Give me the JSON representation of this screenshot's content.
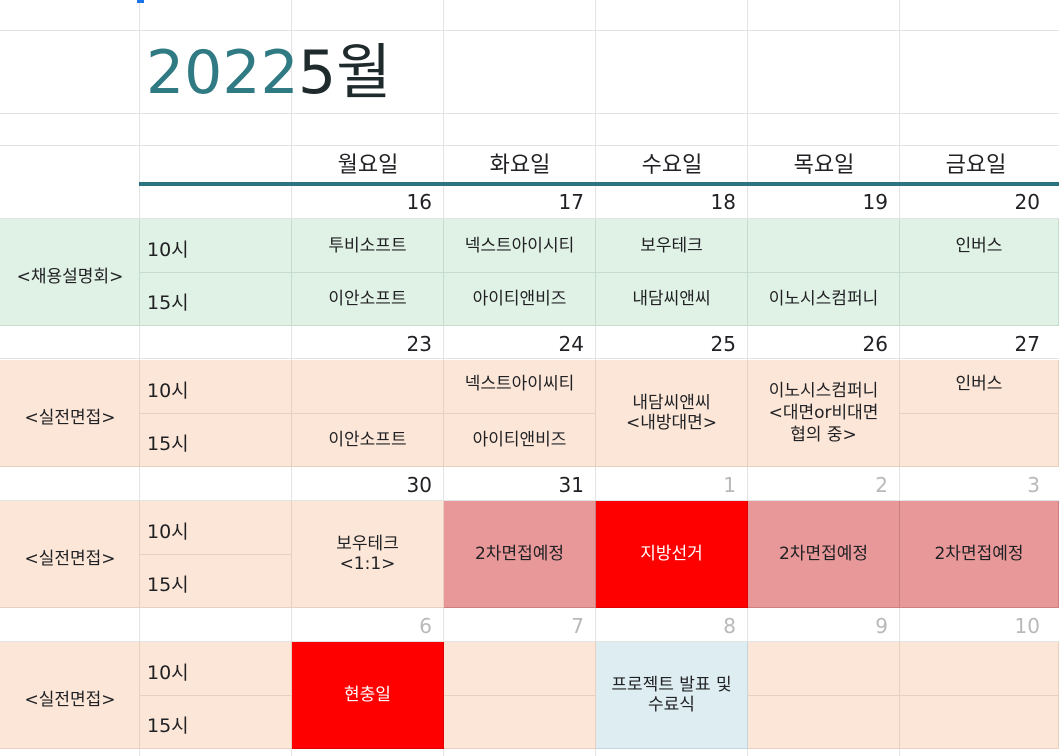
{
  "header": {
    "year": "2022",
    "month": "5월",
    "weekdays": [
      "월요일",
      "화요일",
      "수요일",
      "목요일",
      "금요일"
    ]
  },
  "weeks": [
    {
      "group": "<채용설명회>",
      "days": [
        "16",
        "17",
        "18",
        "19",
        "20"
      ],
      "times": [
        "10시",
        "15시"
      ],
      "slots_10": [
        "투비소프트",
        "넥스트아이시티",
        "보우테크",
        "",
        "인버스"
      ],
      "slots_15": [
        "이안소프트",
        "아이티앤비즈",
        "내담씨앤씨",
        "이노시스컴퍼니",
        ""
      ]
    },
    {
      "group": "<실전면접>",
      "days": [
        "23",
        "24",
        "25",
        "26",
        "27"
      ],
      "times": [
        "10시",
        "15시"
      ],
      "slots_10": [
        "",
        "넥스트아이씨티",
        "",
        "",
        "인버스"
      ],
      "slots_15": [
        "이안소프트",
        "아이티앤비즈",
        "",
        "",
        ""
      ],
      "merged_wed": "내담씨앤씨\n<내방대면>",
      "merged_thu": "이노시스컴퍼니\n<대면or비대면\n협의 중>"
    },
    {
      "group": "<실전면접>",
      "days": [
        "30",
        "31",
        "1",
        "2",
        "3"
      ],
      "times": [
        "10시",
        "15시"
      ],
      "merged": [
        "보우테크\n<1:1>",
        "2차면접예정",
        "지방선거",
        "2차면접예정",
        "2차면접예정"
      ]
    },
    {
      "group": "<실전면접>",
      "days": [
        "6",
        "7",
        "8",
        "9",
        "10"
      ],
      "times": [
        "10시",
        "15시"
      ],
      "merged_mon": "현충일",
      "merged_wed": "프로젝트 발표 및\n수료식"
    }
  ],
  "colors": {
    "year": "#2f7a83",
    "accent_rule": "#2e7381",
    "green": "#e0f1e5",
    "peach": "#fce6d8",
    "rose": "#e89898",
    "red": "#ff0000",
    "blue": "#ddedf1"
  }
}
